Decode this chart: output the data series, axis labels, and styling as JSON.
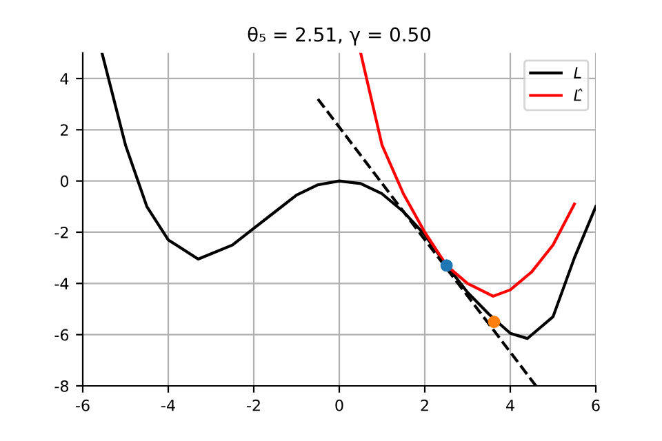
{
  "chart_data": {
    "type": "line",
    "title": "θ₅ = 2.51, γ = 0.50",
    "series": [
      {
        "name": "L",
        "color": "#000000",
        "line_style": "solid",
        "x": [
          -5.55,
          -5,
          -4.5,
          -4,
          -3.3,
          -2.5,
          -2,
          -1.5,
          -1,
          -0.5,
          0,
          0.5,
          1,
          1.5,
          2,
          2.51,
          3,
          3.5,
          4,
          4.4,
          5,
          5.5,
          6
        ],
        "values": [
          5,
          1.4,
          -1.0,
          -2.3,
          -3.05,
          -2.5,
          -1.85,
          -1.2,
          -0.55,
          -0.15,
          0,
          -0.1,
          -0.5,
          -1.2,
          -2.1,
          -3.3,
          -4.35,
          -5.2,
          -5.95,
          -6.15,
          -5.3,
          -3.0,
          -1.0
        ]
      },
      {
        "name": "L̂",
        "color": "#ff0000",
        "line_style": "solid",
        "x": [
          0.5,
          1,
          1.5,
          2,
          2.51,
          3,
          3.6,
          4,
          4.5,
          5,
          5.5
        ],
        "values": [
          5,
          1.4,
          -0.5,
          -2.0,
          -3.3,
          -4.0,
          -4.5,
          -4.25,
          -3.55,
          -2.5,
          -0.9
        ]
      },
      {
        "color": "#000000",
        "line_style": "dashed",
        "x": [
          -0.5,
          4.6
        ],
        "values": [
          3.2,
          -8
        ]
      },
      {
        "type": "scatter",
        "color": "#1f77b4",
        "x": [
          2.51
        ],
        "values": [
          -3.3
        ]
      },
      {
        "type": "scatter",
        "color": "#ff7f0e",
        "x": [
          3.62
        ],
        "values": [
          -5.5
        ]
      }
    ],
    "xlim": [
      -6,
      6
    ],
    "xticks": [
      -6,
      -4,
      -2,
      0,
      2,
      4,
      6
    ],
    "ylim": [
      -8,
      5
    ],
    "yticks": [
      -8,
      -6,
      -4,
      -2,
      0,
      2,
      4
    ],
    "grid": true,
    "legend": "top right"
  }
}
